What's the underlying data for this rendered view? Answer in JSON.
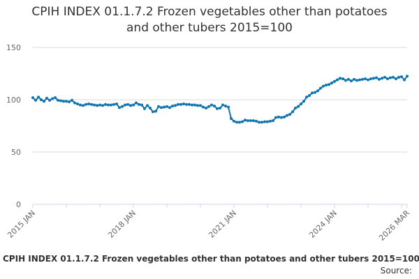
{
  "title_line1": "CPIH INDEX 01.1.7.2 Frozen vegetables other than potatoes",
  "title_line2": "and other tubers 2015=100",
  "footer_title": "CPIH INDEX 01.1.7.2 Frozen vegetables other than potatoes and other tubers 2015=100",
  "source_label": "Source:",
  "colors": {
    "line": "#0f75b0",
    "grid": "#d9d9d9",
    "axis": "#ccd6eb",
    "text": "#323132",
    "tick": "#666666"
  },
  "chart_data": {
    "type": "line",
    "title": "CPIH INDEX 01.1.7.2 Frozen vegetables other than potatoes and other tubers 2015=100",
    "xlabel": "",
    "ylabel": "",
    "ylim": [
      0,
      150
    ],
    "yticks": [
      0,
      50,
      100,
      150
    ],
    "xlim": [
      "2015 JAN",
      "2026 MAR"
    ],
    "xticks": [
      "2015 JAN",
      "2018 JAN",
      "2021 JAN",
      "2024 JAN",
      "2026 MAR"
    ],
    "grid": true,
    "legend": "none",
    "marker": "circle",
    "series": [
      {
        "points": [
          [
            "2015 JAN",
            102
          ],
          [
            "2015 FEB",
            99.5
          ],
          [
            "2015 MAR",
            102.5
          ],
          [
            "2015 APR",
            100
          ],
          [
            "2015 MAY",
            98.5
          ],
          [
            "2015 JUN",
            101.5
          ],
          [
            "2015 JUL",
            99.5
          ],
          [
            "2015 AUG",
            101
          ],
          [
            "2015 SEP",
            102
          ],
          [
            "2015 OCT",
            99.5
          ],
          [
            "2015 NOV",
            99
          ],
          [
            "2015 DEC",
            98.5
          ],
          [
            "2016 JAN",
            98.5
          ],
          [
            "2016 FEB",
            98
          ],
          [
            "2016 MAR",
            99.5
          ],
          [
            "2016 APR",
            97
          ],
          [
            "2016 MAY",
            96
          ],
          [
            "2016 JUN",
            95
          ],
          [
            "2016 JUL",
            94.5
          ],
          [
            "2016 AUG",
            95.5
          ],
          [
            "2016 SEP",
            96
          ],
          [
            "2016 OCT",
            95.5
          ],
          [
            "2016 NOV",
            95
          ],
          [
            "2016 DEC",
            94.5
          ],
          [
            "2017 JAN",
            95
          ],
          [
            "2017 FEB",
            94.5
          ],
          [
            "2017 MAR",
            95.5
          ],
          [
            "2017 APR",
            95
          ],
          [
            "2017 MAY",
            95
          ],
          [
            "2017 JUN",
            95.5
          ],
          [
            "2017 JUL",
            96
          ],
          [
            "2017 AUG",
            92.5
          ],
          [
            "2017 SEP",
            93.5
          ],
          [
            "2017 OCT",
            95
          ],
          [
            "2017 NOV",
            95.5
          ],
          [
            "2017 DEC",
            94.5
          ],
          [
            "2018 JAN",
            95
          ],
          [
            "2018 FEB",
            97
          ],
          [
            "2018 MAR",
            95.5
          ],
          [
            "2018 APR",
            95
          ],
          [
            "2018 MAY",
            91.5
          ],
          [
            "2018 JUN",
            94.5
          ],
          [
            "2018 JUL",
            92
          ],
          [
            "2018 AUG",
            88.5
          ],
          [
            "2018 SEP",
            89
          ],
          [
            "2018 OCT",
            93.5
          ],
          [
            "2018 NOV",
            92.5
          ],
          [
            "2018 DEC",
            93
          ],
          [
            "2019 JAN",
            93.5
          ],
          [
            "2019 FEB",
            92.5
          ],
          [
            "2019 MAR",
            94
          ],
          [
            "2019 APR",
            94.5
          ],
          [
            "2019 MAY",
            95.5
          ],
          [
            "2019 JUN",
            95.5
          ],
          [
            "2019 JUL",
            96
          ],
          [
            "2019 AUG",
            95.5
          ],
          [
            "2019 SEP",
            95.5
          ],
          [
            "2019 OCT",
            95
          ],
          [
            "2019 NOV",
            95
          ],
          [
            "2019 DEC",
            94.5
          ],
          [
            "2020 JAN",
            94.5
          ],
          [
            "2020 FEB",
            93
          ],
          [
            "2020 MAR",
            92
          ],
          [
            "2020 APR",
            93.5
          ],
          [
            "2020 MAY",
            95
          ],
          [
            "2020 JUN",
            94
          ],
          [
            "2020 JUL",
            91.5
          ],
          [
            "2020 AUG",
            92
          ],
          [
            "2020 SEP",
            95
          ],
          [
            "2020 OCT",
            94
          ],
          [
            "2020 NOV",
            93
          ],
          [
            "2020 DEC",
            82
          ],
          [
            "2021 JAN",
            79.5
          ],
          [
            "2021 FEB",
            78.5
          ],
          [
            "2021 MAR",
            78.5
          ],
          [
            "2021 APR",
            79
          ],
          [
            "2021 MAY",
            80.5
          ],
          [
            "2021 JUN",
            80
          ],
          [
            "2021 JUL",
            80
          ],
          [
            "2021 AUG",
            80
          ],
          [
            "2021 SEP",
            79.5
          ],
          [
            "2021 OCT",
            78.5
          ],
          [
            "2021 NOV",
            78.5
          ],
          [
            "2021 DEC",
            79
          ],
          [
            "2022 JAN",
            79
          ],
          [
            "2022 FEB",
            79.5
          ],
          [
            "2022 MAR",
            80
          ],
          [
            "2022 APR",
            83
          ],
          [
            "2022 MAY",
            83.5
          ],
          [
            "2022 JUN",
            83
          ],
          [
            "2022 JUL",
            83.5
          ],
          [
            "2022 AUG",
            85
          ],
          [
            "2022 SEP",
            86
          ],
          [
            "2022 OCT",
            88.5
          ],
          [
            "2022 NOV",
            92
          ],
          [
            "2022 DEC",
            93.5
          ],
          [
            "2023 JAN",
            96
          ],
          [
            "2023 FEB",
            98.5
          ],
          [
            "2023 MAR",
            102.5
          ],
          [
            "2023 APR",
            104
          ],
          [
            "2023 MAY",
            106.5
          ],
          [
            "2023 JUN",
            107
          ],
          [
            "2023 JUL",
            108.5
          ],
          [
            "2023 AUG",
            111
          ],
          [
            "2023 SEP",
            113
          ],
          [
            "2023 OCT",
            114
          ],
          [
            "2023 NOV",
            114.5
          ],
          [
            "2023 DEC",
            116
          ],
          [
            "2024 JAN",
            117.5
          ],
          [
            "2024 FEB",
            119
          ],
          [
            "2024 MAR",
            120.5
          ],
          [
            "2024 APR",
            120
          ],
          [
            "2024 MAY",
            118.5
          ],
          [
            "2024 JUN",
            119.5
          ],
          [
            "2024 JUL",
            118
          ],
          [
            "2024 AUG",
            119.5
          ],
          [
            "2024 SEP",
            118.5
          ],
          [
            "2024 OCT",
            119
          ],
          [
            "2024 NOV",
            119.5
          ],
          [
            "2024 DEC",
            120
          ],
          [
            "2025 JAN",
            119
          ],
          [
            "2025 FEB",
            120
          ],
          [
            "2025 MAR",
            120.5
          ],
          [
            "2025 APR",
            121
          ],
          [
            "2025 MAY",
            119.5
          ],
          [
            "2025 JUN",
            120.5
          ],
          [
            "2025 JUL",
            121.5
          ],
          [
            "2025 AUG",
            120
          ],
          [
            "2025 SEP",
            121
          ],
          [
            "2025 OCT",
            121.5
          ],
          [
            "2025 NOV",
            120
          ],
          [
            "2025 DEC",
            121.5
          ],
          [
            "2026 JAN",
            122
          ],
          [
            "2026 FEB",
            119
          ],
          [
            "2026 MAR",
            122.5
          ]
        ]
      }
    ]
  }
}
